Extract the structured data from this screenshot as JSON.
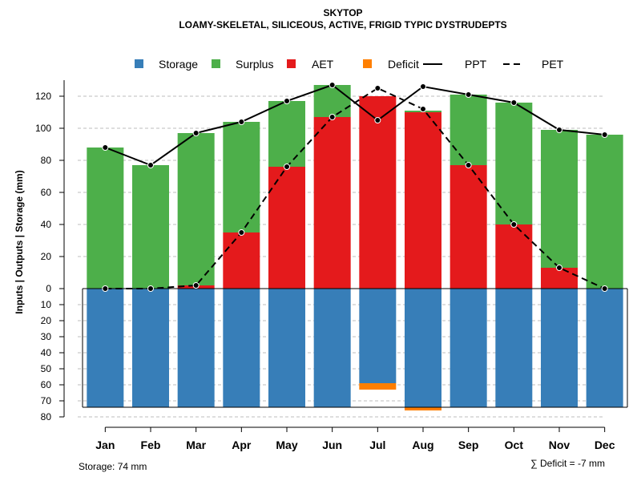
{
  "chart_data": {
    "type": "bar",
    "title": "SKYTOP",
    "subtitle": "LOAMY-SKELETAL, SILICEOUS, ACTIVE, FRIGID TYPIC DYSTRUDEPTS",
    "ylabel": "Inputs | Outputs | Storage    (mm)",
    "categories": [
      "Jan",
      "Feb",
      "Mar",
      "Apr",
      "May",
      "Jun",
      "Jul",
      "Aug",
      "Sep",
      "Oct",
      "Nov",
      "Dec"
    ],
    "ylim": [
      -80,
      130
    ],
    "yticks_positive": [
      0,
      20,
      40,
      60,
      80,
      100,
      120
    ],
    "yticks_negative": [
      10,
      20,
      30,
      40,
      50,
      60,
      70,
      80
    ],
    "legend": [
      {
        "key": "storage",
        "label": "Storage",
        "type": "box"
      },
      {
        "key": "surplus",
        "label": "Surplus",
        "type": "box"
      },
      {
        "key": "aet",
        "label": "AET",
        "type": "box"
      },
      {
        "key": "deficit",
        "label": "Deficit",
        "type": "box"
      },
      {
        "key": "ppt",
        "label": "PPT",
        "type": "solid"
      },
      {
        "key": "pet",
        "label": "PET",
        "type": "dashed"
      }
    ],
    "colors": {
      "storage": "#377EB8",
      "surplus": "#4DAF4A",
      "aet": "#E41A1C",
      "deficit": "#FF7F00",
      "line": "#000000",
      "grid": "#BEBEBE"
    },
    "series": [
      {
        "name": "AET",
        "values": [
          0,
          0,
          2,
          35,
          76,
          107,
          120,
          110,
          77,
          40,
          13,
          0
        ]
      },
      {
        "name": "Surplus",
        "values": [
          88,
          77,
          95,
          69,
          41,
          20,
          0,
          1,
          44,
          76,
          86,
          96
        ]
      },
      {
        "name": "Storage",
        "values": [
          74,
          74,
          74,
          74,
          74,
          74,
          59,
          74,
          74,
          74,
          74,
          74
        ]
      },
      {
        "name": "Deficit",
        "values": [
          0,
          0,
          0,
          0,
          0,
          0,
          4,
          2,
          0,
          0,
          0,
          0
        ]
      },
      {
        "name": "PPT",
        "values": [
          88,
          77,
          97,
          104,
          117,
          127,
          105,
          126,
          121,
          116,
          99,
          96
        ]
      },
      {
        "name": "PET",
        "values": [
          0,
          0,
          2,
          35,
          76,
          107,
          125,
          112,
          77,
          40,
          13,
          0
        ]
      }
    ],
    "storage_capacity": 74
  },
  "footer": {
    "storage_note": "Storage: 74 mm",
    "deficit_note": "∑ Deficit = -7 mm"
  }
}
